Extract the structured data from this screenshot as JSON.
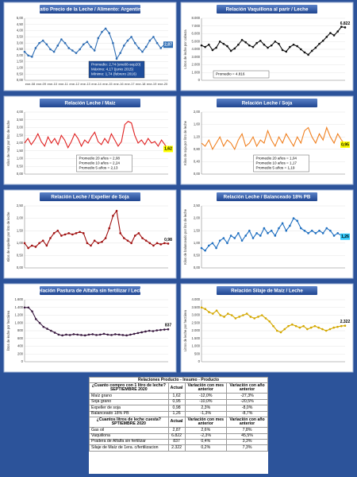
{
  "chart_data": [
    {
      "type": "line",
      "title": "Ratio Precio de la Leche / Alimento: Argentina",
      "color": "#2e6db4",
      "markers": true,
      "xlabels": [
        "ene-08",
        "ene-09",
        "ene-10",
        "ene-11",
        "ene-12",
        "ene-13",
        "ene-14",
        "ene-15",
        "ene-16",
        "ene-17",
        "ene-18",
        "ene-19",
        "ene-20"
      ],
      "values": [
        2.3,
        2.0,
        1.9,
        2.6,
        3.0,
        3.2,
        2.9,
        2.5,
        2.3,
        2.8,
        3.3,
        3.0,
        2.6,
        2.4,
        2.2,
        2.5,
        2.9,
        3.1,
        2.7,
        2.4,
        3.4,
        3.9,
        4.17,
        3.8,
        3.0,
        1.74,
        2.2,
        2.8,
        3.2,
        3.5,
        3.0,
        2.6,
        2.3,
        2.7,
        3.2,
        3.5,
        3.0,
        2.6,
        2.9,
        2.87
      ],
      "value_labels": [
        null,
        null,
        null,
        null,
        null,
        null,
        null,
        null,
        null,
        null,
        null,
        null,
        null,
        null,
        null,
        null,
        null,
        null,
        null,
        null,
        null,
        null,
        null,
        null,
        null,
        null,
        null,
        null,
        null,
        null,
        null,
        null,
        null,
        null,
        null,
        null,
        null,
        null,
        null,
        "2,87"
      ],
      "end_label_fill": "#2e6db4",
      "end_label_text": "#ffffff",
      "ylim": [
        0,
        5
      ],
      "yticks": [
        {
          "value": 0,
          "label": "0,00"
        },
        {
          "value": 0.5,
          "label": "0,50"
        },
        {
          "value": 1,
          "label": "1,00"
        },
        {
          "value": 1.5,
          "label": "1,50"
        },
        {
          "value": 2,
          "label": "2,00"
        },
        {
          "value": 2.5,
          "label": "2,50"
        },
        {
          "value": 3,
          "label": "3,00"
        },
        {
          "value": 3.5,
          "label": "3,50"
        },
        {
          "value": 4,
          "label": "4,00"
        },
        {
          "value": 4.5,
          "label": "4,50"
        },
        {
          "value": 5,
          "label": "5,00"
        }
      ],
      "annotation": [
        "Promedio: 2,74 (ene08-sep20)",
        "Máximo: 4,17 (junio 2015)",
        "Mínimo: 1,74 (febrero 2016)"
      ],
      "annotation_fill": "#1f4e9c",
      "annotation_text": "#ffffff",
      "annotation_corner": "bottom-right"
    },
    {
      "type": "line",
      "title": "Relación Vaquillona al parir / Leche",
      "y_label": "Litros de leche por cabeza",
      "color": "#111111",
      "markers": true,
      "values": [
        4500,
        4300,
        4600,
        3900,
        4200,
        5000,
        4700,
        4400,
        3800,
        4100,
        4600,
        5200,
        4900,
        4500,
        4300,
        4800,
        5100,
        4600,
        4200,
        4500,
        5000,
        4700,
        3900,
        3700,
        4300,
        4600,
        4400,
        4000,
        3600,
        3300,
        3800,
        4200,
        4700,
        5100,
        5600,
        6100,
        5800,
        6300,
        6900,
        6822
      ],
      "value_labels": [
        null,
        null,
        null,
        null,
        null,
        null,
        null,
        null,
        null,
        null,
        null,
        null,
        null,
        null,
        null,
        null,
        null,
        null,
        null,
        null,
        null,
        null,
        null,
        null,
        null,
        null,
        null,
        null,
        null,
        null,
        null,
        null,
        null,
        null,
        null,
        null,
        null,
        null,
        null,
        "6.822"
      ],
      "ylim": [
        0,
        8000
      ],
      "yticks": [
        0,
        {
          "value": 1000,
          "label": "1.000"
        },
        {
          "value": 2000,
          "label": "2.000"
        },
        {
          "value": 3000,
          "label": "3.000"
        },
        {
          "value": 4000,
          "label": "4.000"
        },
        {
          "value": 5000,
          "label": "5.000"
        },
        {
          "value": 6000,
          "label": "6.000"
        },
        {
          "value": 7000,
          "label": "7.000"
        },
        {
          "value": 8000,
          "label": "8.000"
        }
      ],
      "annotation": [
        "Promedio = 4.816"
      ],
      "annotation_fill": "#ffffff",
      "annotation_text": "#000000",
      "annotation_corner": "bottom-left"
    },
    {
      "type": "line",
      "title": "Relación Leche / Maíz",
      "y_label": "Kilos de maíz por litro de leche",
      "color": "#e02020",
      "markers": false,
      "values": [
        2.0,
        2.3,
        1.9,
        2.2,
        2.6,
        2.1,
        1.8,
        2.4,
        2.0,
        2.3,
        1.9,
        2.5,
        2.2,
        1.7,
        2.1,
        2.6,
        2.3,
        1.8,
        2.2,
        2.0,
        2.4,
        2.7,
        2.1,
        1.9,
        2.3,
        2.0,
        2.6,
        2.2,
        1.8,
        2.1,
        3.2,
        3.4,
        3.3,
        2.5,
        2.0,
        2.2,
        1.9,
        2.3,
        2.0,
        2.1,
        1.8,
        2.2,
        1.9,
        1.62
      ],
      "value_labels": [
        null,
        null,
        null,
        null,
        null,
        null,
        null,
        null,
        null,
        null,
        null,
        null,
        null,
        null,
        null,
        null,
        null,
        null,
        null,
        null,
        null,
        null,
        null,
        null,
        null,
        null,
        null,
        null,
        null,
        null,
        null,
        null,
        null,
        null,
        null,
        null,
        null,
        null,
        null,
        null,
        null,
        null,
        null,
        "1,62"
      ],
      "end_label_fill": "#ffff00",
      "end_label_text": "#000000",
      "ylim": [
        0,
        4
      ],
      "yticks": [
        {
          "value": 0,
          "label": "0,00"
        },
        {
          "value": 0.5,
          "label": "0,50"
        },
        {
          "value": 1,
          "label": "1,00"
        },
        {
          "value": 1.5,
          "label": "1,50"
        },
        {
          "value": 2,
          "label": "2,00"
        },
        {
          "value": 2.5,
          "label": "2,50"
        },
        {
          "value": 3,
          "label": "3,00"
        },
        {
          "value": 3.5,
          "label": "3,50"
        },
        {
          "value": 4,
          "label": "4,00"
        }
      ],
      "annotation": [
        "Promedio 20 años = 2,08",
        "Promedio 10 años = 2,24",
        "Promedio  5 años = 2,13"
      ],
      "annotation_fill": "#ffffff",
      "annotation_text": "#000000",
      "annotation_corner": "bottom-center"
    },
    {
      "type": "line",
      "title": "Relación Leche / Soja",
      "y_label": "Kilos de soja por litro de leche",
      "color": "#f08020",
      "markers": false,
      "values": [
        1.0,
        0.9,
        1.1,
        0.8,
        1.0,
        1.2,
        0.9,
        1.1,
        1.0,
        0.8,
        1.1,
        1.3,
        0.9,
        1.0,
        1.2,
        0.9,
        1.1,
        1.0,
        1.4,
        1.1,
        0.9,
        1.2,
        1.0,
        1.3,
        1.1,
        0.9,
        1.2,
        1.0,
        1.4,
        1.5,
        1.2,
        1.0,
        1.3,
        1.1,
        1.5,
        1.2,
        1.0,
        1.3,
        1.1,
        0.95
      ],
      "value_labels": [
        null,
        null,
        null,
        null,
        null,
        null,
        null,
        null,
        null,
        null,
        null,
        null,
        null,
        null,
        null,
        null,
        null,
        null,
        null,
        null,
        null,
        null,
        null,
        null,
        null,
        null,
        null,
        null,
        null,
        null,
        null,
        null,
        null,
        null,
        null,
        null,
        null,
        null,
        null,
        "0,95"
      ],
      "end_label_fill": "#ffff00",
      "end_label_text": "#000000",
      "ylim": [
        0,
        2
      ],
      "yticks": [
        {
          "value": 0,
          "label": "0,00"
        },
        {
          "value": 0.4,
          "label": "0,40"
        },
        {
          "value": 0.8,
          "label": "0,80"
        },
        {
          "value": 1.2,
          "label": "1,20"
        },
        {
          "value": 1.6,
          "label": "1,60"
        },
        {
          "value": 2,
          "label": "2,00"
        }
      ],
      "annotation": [
        "Promedio 20 años = 1,04",
        "Promedio 10 años = 1,17",
        "Promedio  5 años = 1,19"
      ],
      "annotation_fill": "#ffffff",
      "annotation_text": "#000000",
      "annotation_corner": "bottom-center"
    },
    {
      "type": "line",
      "title": "Relación Leche / Expeller de Soja",
      "y_label": "Kilos de expeller por litro de leche",
      "color": "#a01010",
      "markers": true,
      "values": [
        1.0,
        0.8,
        0.9,
        0.85,
        1.0,
        1.1,
        0.9,
        1.2,
        1.4,
        1.5,
        1.3,
        1.35,
        1.4,
        1.35,
        1.4,
        1.45,
        1.4,
        1.0,
        0.9,
        1.1,
        1.0,
        1.05,
        1.2,
        1.6,
        2.1,
        2.3,
        1.4,
        1.2,
        1.1,
        1.0,
        1.3,
        1.4,
        1.2,
        1.1,
        1.0,
        0.9,
        1.0,
        0.95,
        1.0,
        0.98
      ],
      "value_labels": [
        null,
        null,
        null,
        null,
        null,
        null,
        null,
        null,
        null,
        null,
        null,
        null,
        null,
        null,
        null,
        null,
        null,
        null,
        null,
        null,
        null,
        null,
        null,
        null,
        null,
        null,
        null,
        null,
        null,
        null,
        null,
        null,
        null,
        null,
        null,
        null,
        null,
        null,
        null,
        "0,98"
      ],
      "ylim": [
        0,
        2.5
      ],
      "yticks": [
        {
          "value": 0,
          "label": "0,00"
        },
        {
          "value": 0.5,
          "label": "0,50"
        },
        {
          "value": 1,
          "label": "1,00"
        },
        {
          "value": 1.5,
          "label": "1,50"
        },
        {
          "value": 2,
          "label": "2,00"
        },
        {
          "value": 2.5,
          "label": "2,50"
        }
      ]
    },
    {
      "type": "line",
      "title": "Relación Leche / Balanceado 18% PB",
      "y_label": "Kilos de balanceado por litro de leche",
      "color": "#1f6fc0",
      "markers": true,
      "values": [
        0.8,
        0.7,
        0.9,
        1.0,
        0.8,
        1.1,
        1.2,
        1.0,
        1.3,
        1.2,
        1.4,
        1.1,
        1.3,
        1.5,
        1.2,
        1.4,
        1.3,
        1.6,
        1.4,
        1.5,
        1.3,
        1.6,
        1.8,
        1.5,
        1.7,
        2.0,
        1.9,
        1.6,
        1.5,
        1.4,
        1.5,
        1.4,
        1.5,
        1.4,
        1.6,
        1.5,
        1.3,
        1.4,
        1.3,
        1.26
      ],
      "value_labels": [
        null,
        null,
        null,
        null,
        null,
        null,
        null,
        null,
        null,
        null,
        null,
        null,
        null,
        null,
        null,
        null,
        null,
        null,
        null,
        null,
        null,
        null,
        null,
        null,
        null,
        null,
        null,
        null,
        null,
        null,
        null,
        null,
        null,
        null,
        null,
        null,
        null,
        null,
        null,
        "1,26"
      ],
      "end_label_fill": "#33ccff",
      "end_label_text": "#000000",
      "ylim": [
        0,
        2.5
      ],
      "yticks": [
        {
          "value": 0,
          "label": "0,00"
        },
        {
          "value": 0.5,
          "label": "0,50"
        },
        {
          "value": 1,
          "label": "1,00"
        },
        {
          "value": 1.5,
          "label": "1,50"
        },
        {
          "value": 2,
          "label": "2,00"
        },
        {
          "value": 2.5,
          "label": "2,50"
        }
      ]
    },
    {
      "type": "line",
      "title": "Relación Pastura de Alfalfa sin fertilizar / Leche",
      "y_label": "litros de leche por hectárea",
      "color": "#3a1a40",
      "markers": true,
      "values": [
        1400,
        1400,
        1300,
        1100,
        1000,
        900,
        850,
        800,
        750,
        700,
        680,
        700,
        690,
        710,
        700,
        690,
        680,
        700,
        710,
        690,
        700,
        720,
        700,
        690,
        710,
        700,
        690,
        680,
        700,
        720,
        740,
        760,
        780,
        800,
        790,
        810,
        820,
        830,
        837
      ],
      "value_labels": [
        null,
        null,
        null,
        null,
        null,
        null,
        null,
        null,
        null,
        null,
        null,
        null,
        null,
        null,
        null,
        null,
        null,
        null,
        null,
        null,
        null,
        null,
        null,
        null,
        null,
        null,
        null,
        null,
        null,
        null,
        null,
        null,
        null,
        null,
        null,
        null,
        null,
        null,
        "837"
      ],
      "ylim": [
        0,
        1600
      ],
      "yticks": [
        0,
        200,
        400,
        600,
        800,
        {
          "value": 1000,
          "label": "1.000"
        },
        {
          "value": 1200,
          "label": "1.200"
        },
        {
          "value": 1400,
          "label": "1.400"
        },
        {
          "value": 1600,
          "label": "1.600"
        }
      ]
    },
    {
      "type": "line",
      "title": "Relación Silaje de Maíz / Leche",
      "y_label": "Litros de leche por hectárea",
      "color": "#d4a800",
      "markers": true,
      "values": [
        3500,
        3400,
        3200,
        3100,
        3300,
        3000,
        2900,
        3100,
        3000,
        2800,
        2900,
        3000,
        3100,
        2900,
        2800,
        2900,
        3000,
        2800,
        2600,
        2300,
        2000,
        1900,
        2100,
        2300,
        2400,
        2300,
        2200,
        2300,
        2100,
        2200,
        2300,
        2200,
        2100,
        2000,
        2100,
        2200,
        2250,
        2300,
        2322
      ],
      "value_labels": [
        null,
        null,
        null,
        null,
        null,
        null,
        null,
        null,
        null,
        null,
        null,
        null,
        null,
        null,
        null,
        null,
        null,
        null,
        null,
        null,
        null,
        null,
        null,
        null,
        null,
        null,
        null,
        null,
        null,
        null,
        null,
        null,
        null,
        null,
        null,
        null,
        null,
        null,
        "2.322"
      ],
      "ylim": [
        0,
        4000
      ],
      "yticks": [
        0,
        500,
        {
          "value": 1000,
          "label": "1.000"
        },
        {
          "value": 1500,
          "label": "1.500"
        },
        {
          "value": 2000,
          "label": "2.000"
        },
        {
          "value": 2500,
          "label": "2.500"
        },
        {
          "value": 3000,
          "label": "3.000"
        },
        {
          "value": 3500,
          "label": "3.500"
        },
        {
          "value": 4000,
          "label": "4.000"
        }
      ]
    }
  ],
  "table": {
    "title": "Relaciones Producto - Insumo - Producto",
    "sections": [
      {
        "header": [
          "¿Cuanto compro con 1 litro de leche? SEPTIEMBRE 2020",
          "Actual",
          "Variación con mes anterior",
          "Variación con año anterior"
        ],
        "rows": [
          [
            "Maíz grano",
            "1,62",
            "-12,0%",
            "-27,3%"
          ],
          [
            "Soja grano",
            "0,95",
            "-10,0%",
            "-20,5%"
          ],
          [
            "Expeller de soja",
            "0,98",
            "2,3%",
            "-8,0%"
          ],
          [
            "Balanceado 18% PB",
            "1,26",
            "-1,3%",
            "-8,7%"
          ]
        ]
      },
      {
        "header": [
          "¿Cuantos litros de leche cuesta? SPTIEMBRE 2020",
          "Actual",
          "Variación con mes anterior",
          "Variación con año anterior"
        ],
        "rows": [
          [
            "Gas oil",
            "2,87",
            "2,6%",
            "7,8%"
          ],
          [
            "Vaquillona",
            "6.822",
            "-2,3%",
            "45,5%"
          ],
          [
            "Pradera de Alfalfa sin fertilizar",
            "837",
            "0,4%",
            "3,3%"
          ],
          [
            "Silaje de Maíz de 1era. c/fertilizacion",
            "2.322",
            "0,2%",
            "7,3%"
          ]
        ]
      }
    ]
  }
}
